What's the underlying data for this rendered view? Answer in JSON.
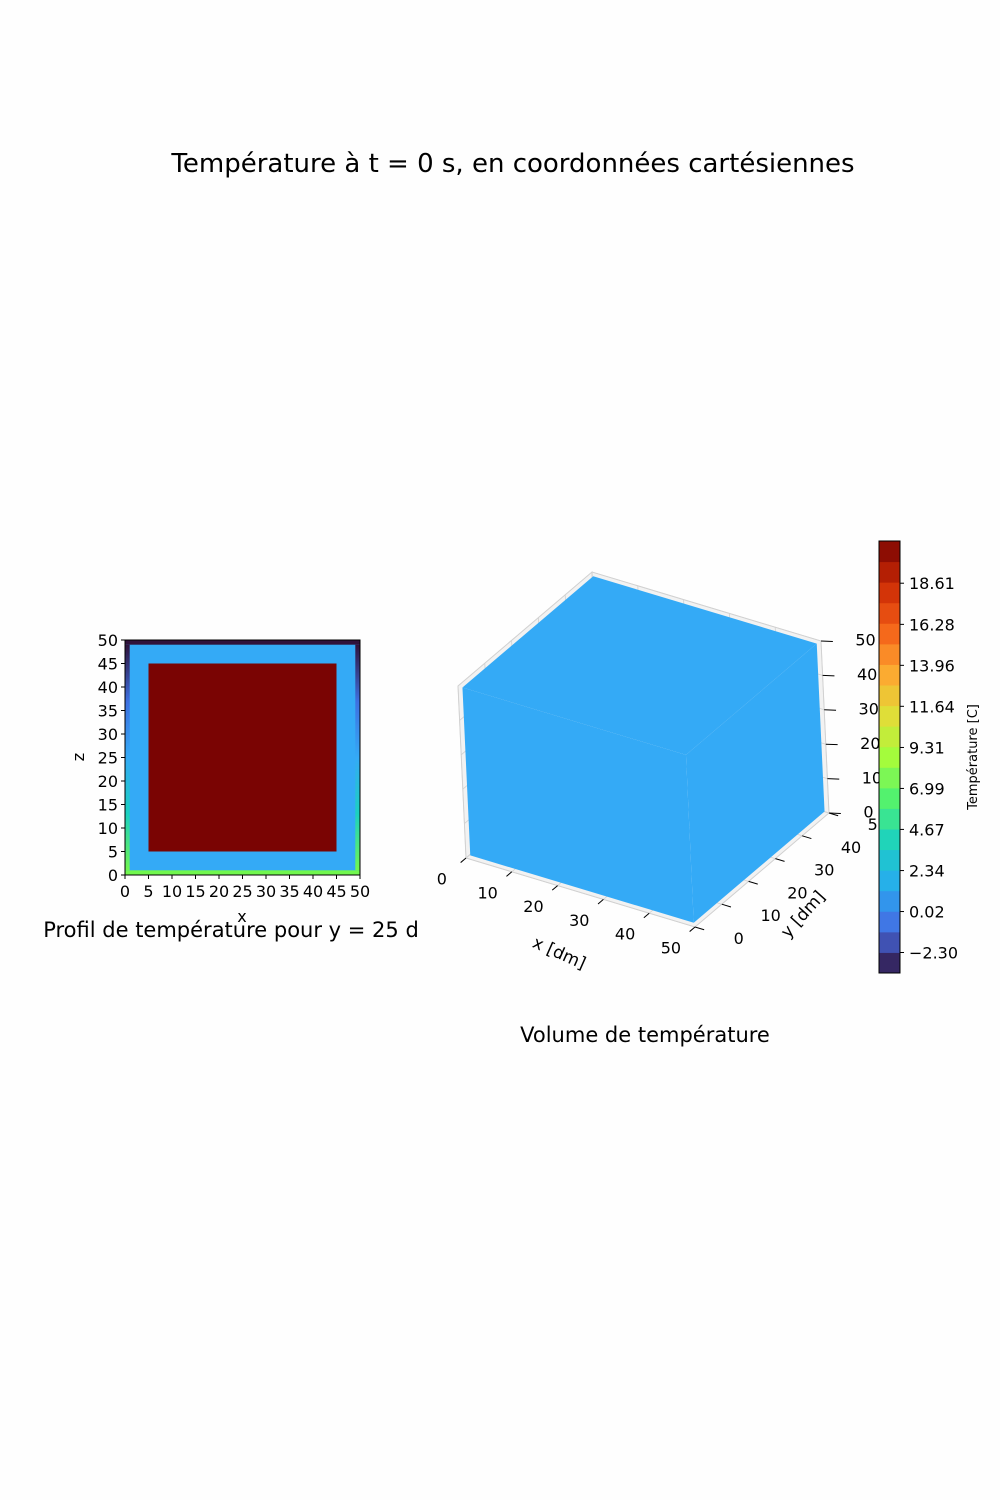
{
  "figure": {
    "suptitle": "Température à t = 0 s, en coordonnées cartésiennes"
  },
  "chart_data": [
    {
      "type": "heatmap",
      "title": "Profil de température pour y = 25 d",
      "xlabel": "x",
      "ylabel": "z",
      "xlim": [
        0,
        50
      ],
      "ylim": [
        0,
        50
      ],
      "xticks": [
        "0",
        "5",
        "10",
        "15",
        "20",
        "25",
        "30",
        "35",
        "40",
        "45",
        "50"
      ],
      "yticks": [
        "0",
        "5",
        "10",
        "15",
        "20",
        "25",
        "30",
        "35",
        "40",
        "45",
        "50"
      ],
      "regions": [
        {
          "x": [
            0,
            50
          ],
          "z": [
            0,
            50
          ],
          "color": "#34aaf6"
        },
        {
          "x": [
            5,
            45
          ],
          "z": [
            5,
            45
          ],
          "color": "#7a0403"
        },
        {
          "x": [
            0,
            50
          ],
          "z": [
            0,
            1
          ],
          "color": "#71f74e"
        },
        {
          "x": [
            0,
            50
          ],
          "z": [
            49,
            50
          ],
          "color": "#30123b"
        }
      ],
      "side_gradient": [
        "#71f74e",
        "#1bd1c0",
        "#34aaf6",
        "#3e6fe0",
        "#30123b"
      ]
    },
    {
      "type": "surface3d",
      "title": "Volume de température",
      "xlabel": "x [dm]",
      "ylabel": "y [dm]",
      "zlabel": "",
      "xlim": [
        0,
        50
      ],
      "ylim": [
        0,
        50
      ],
      "zlim": [
        0,
        50
      ],
      "xticks": [
        "0",
        "10",
        "20",
        "30",
        "40",
        "50"
      ],
      "yticks": [
        "0",
        "10",
        "20",
        "30",
        "40",
        "50"
      ],
      "zticks": [
        "0",
        "10",
        "20",
        "30",
        "40",
        "50"
      ],
      "surface_color": "#34aaf6",
      "surface_value": 2.34
    }
  ],
  "colorbar": {
    "label": "Température [C]",
    "min": -3.46,
    "max": 21.0,
    "ticks": [
      "−2.30",
      "0.02",
      "2.34",
      "4.67",
      "6.99",
      "9.31",
      "11.64",
      "13.96",
      "16.28",
      "18.61"
    ],
    "tick_values": [
      -2.3,
      0.02,
      2.34,
      4.67,
      6.99,
      9.31,
      11.64,
      13.96,
      16.28,
      18.61
    ],
    "levels": 21,
    "colormap": "turbo"
  }
}
